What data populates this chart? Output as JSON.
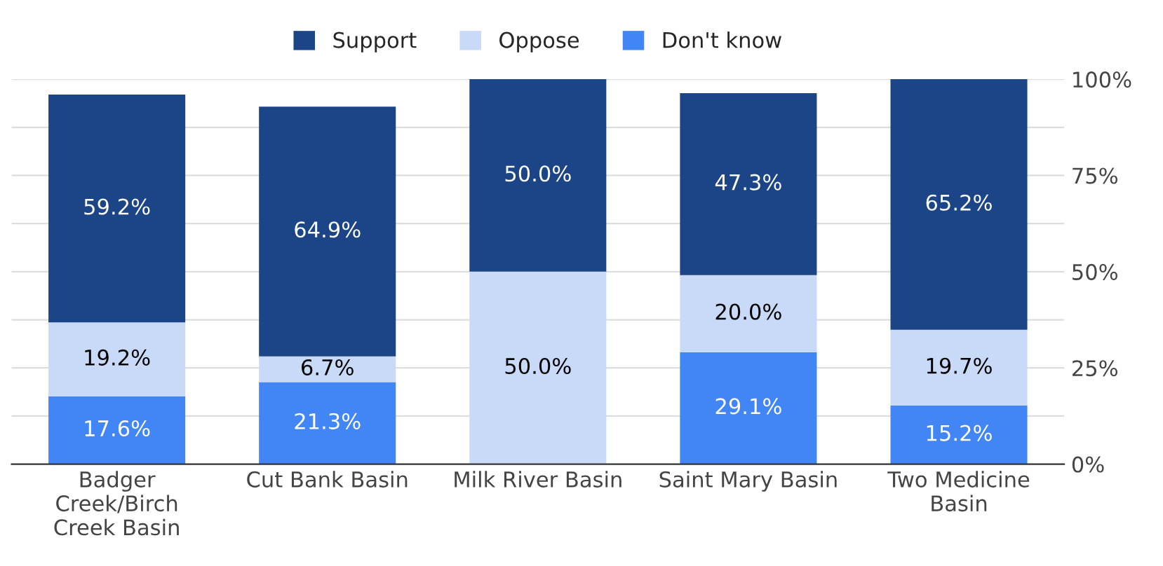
{
  "chart_data": {
    "type": "bar",
    "stacked": true,
    "categories": [
      "Badger\nCreek/Birch\nCreek Basin",
      "Cut Bank Basin",
      "Milk River Basin",
      "Saint Mary Basin",
      "Two Medicine\nBasin"
    ],
    "series": [
      {
        "name": "Don't know",
        "color": "#4285f4",
        "values": [
          17.6,
          21.3,
          0,
          29.1,
          15.2
        ],
        "value_labels": [
          "17.6%",
          "21.3%",
          null,
          "29.1%",
          "15.2%"
        ]
      },
      {
        "name": "Oppose",
        "color": "#c9daf8",
        "values": [
          19.2,
          6.7,
          50.0,
          20.0,
          19.7
        ],
        "value_labels": [
          "19.2%",
          "6.7%",
          "50.0%",
          "20.0%",
          "19.7%"
        ]
      },
      {
        "name": "Support",
        "color": "#1c4587",
        "values": [
          59.2,
          64.9,
          50.0,
          47.3,
          65.2
        ],
        "value_labels": [
          "59.2%",
          "64.9%",
          "50.0%",
          "47.3%",
          "65.2%"
        ]
      }
    ],
    "ylim": [
      0,
      100
    ],
    "yticks": [
      {
        "value": 0,
        "label": "0%"
      },
      {
        "value": 12.5,
        "label": null
      },
      {
        "value": 25,
        "label": "25%"
      },
      {
        "value": 37.5,
        "label": null
      },
      {
        "value": 50,
        "label": "50%"
      },
      {
        "value": 62.5,
        "label": null
      },
      {
        "value": 75,
        "label": "75%"
      },
      {
        "value": 87.5,
        "label": null
      },
      {
        "value": 100,
        "label": "100%"
      }
    ],
    "grid": "y",
    "legend": "top"
  }
}
